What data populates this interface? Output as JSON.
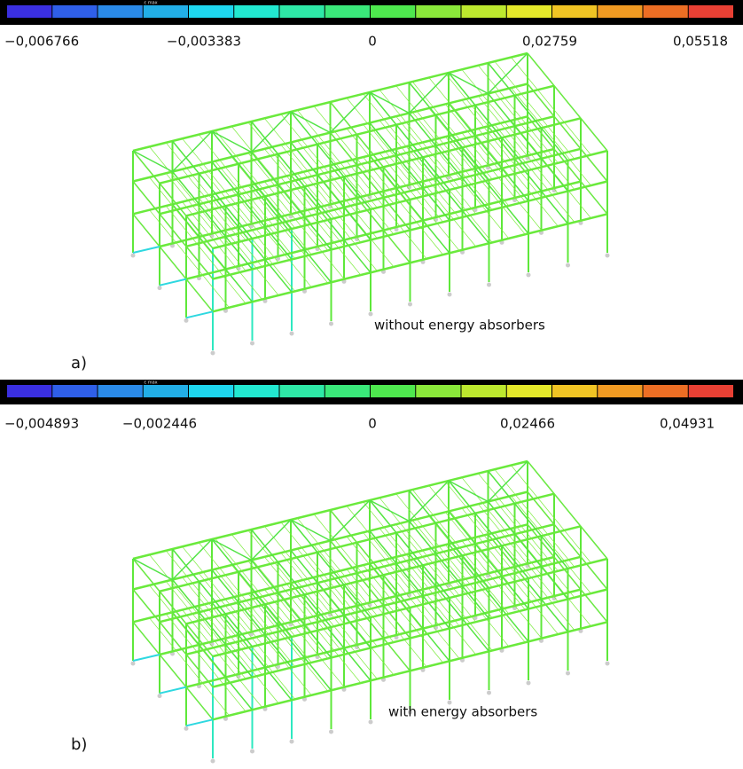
{
  "panels": [
    {
      "legend_title": "ε max",
      "ticks": [
        "−0,006766",
        "−0,003383",
        "0",
        "0,02759",
        "0,05518"
      ],
      "caption": "without energy absorbers",
      "label": "a)"
    },
    {
      "legend_title": "ε max",
      "ticks": [
        "−0,004893",
        "−0,002446",
        "0",
        "0,02466",
        "0,04931"
      ],
      "caption": "with energy absorbers",
      "label": "b)"
    }
  ]
}
